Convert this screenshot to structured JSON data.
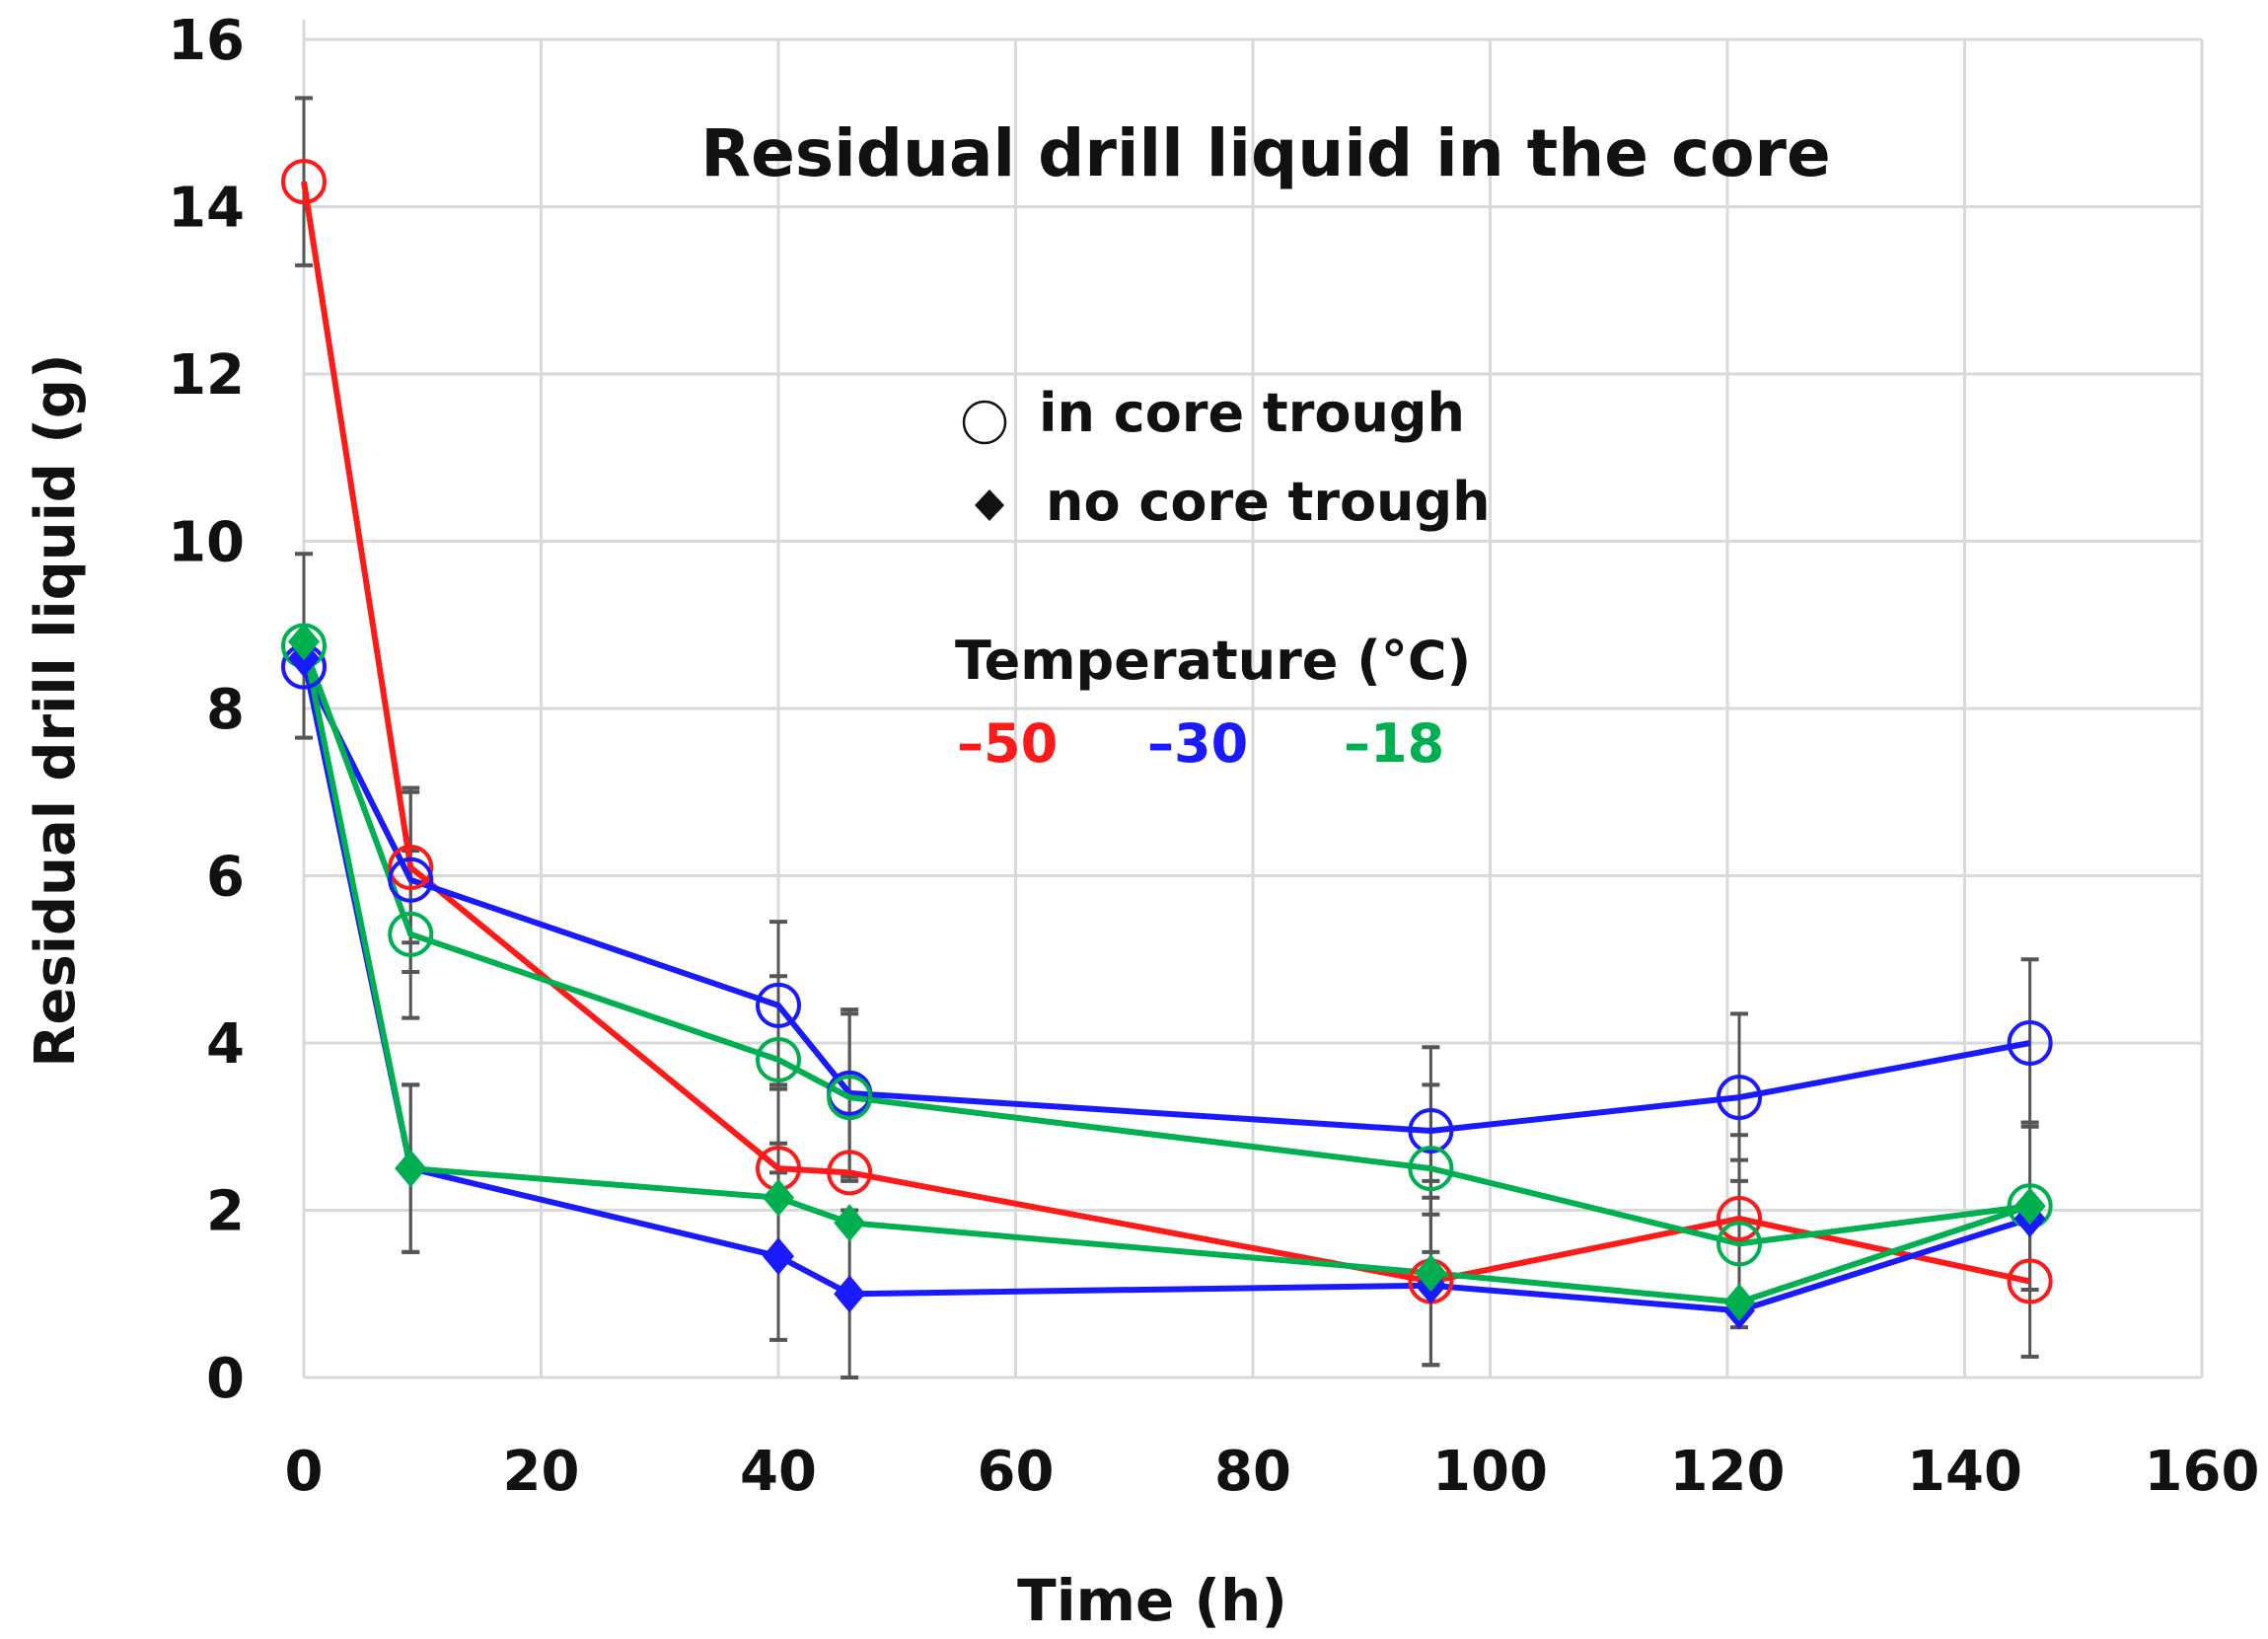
{
  "chart_data": {
    "type": "line",
    "title": "Residual drill liquid in the core",
    "xlabel": "Time (h)",
    "ylabel": "Residual drill liquid (g)",
    "xlim": [
      0,
      160
    ],
    "ylim": [
      0,
      16
    ],
    "xticks": [
      "0",
      "20",
      "40",
      "60",
      "80",
      "100",
      "120",
      "140",
      "160"
    ],
    "yticks": [
      "0",
      "2",
      "4",
      "6",
      "8",
      "10",
      "12",
      "14",
      "16"
    ],
    "grid": true,
    "legend": {
      "markers": [
        {
          "symbol": "circle",
          "label": "in core trough"
        },
        {
          "symbol": "diamond",
          "label": "no core trough"
        }
      ],
      "temperature_title": "Temperature (°C)",
      "temperatures": [
        {
          "label": "–50",
          "color": "#ff1a1a"
        },
        {
          "label": "–30",
          "color": "#1a1aff"
        },
        {
          "label": "–18",
          "color": "#00b050"
        }
      ]
    },
    "series": [
      {
        "name": "–50 in core trough",
        "color": "#ff1a1a",
        "marker": "circle",
        "x": [
          0,
          9,
          40,
          46,
          95,
          121,
          145.5
        ],
        "y": [
          14.3,
          6.1,
          2.5,
          2.45,
          1.15,
          1.9,
          1.15
        ],
        "err": [
          1.0,
          0.9,
          1.0,
          0.0,
          1.0,
          1.0,
          0.9
        ]
      },
      {
        "name": "–30 in core trough",
        "color": "#1a1aff",
        "marker": "circle",
        "x": [
          0,
          9,
          40,
          46,
          95,
          121,
          145.5
        ],
        "y": [
          8.5,
          5.95,
          4.45,
          3.4,
          2.95,
          3.35,
          4.0
        ],
        "err": [
          0.0,
          1.1,
          1.0,
          1.0,
          1.0,
          1.0,
          1.0
        ]
      },
      {
        "name": "–18 in core trough",
        "color": "#00b050",
        "marker": "circle",
        "x": [
          0,
          9,
          40,
          46,
          95,
          121,
          145.5
        ],
        "y": [
          8.75,
          5.3,
          3.8,
          3.35,
          2.5,
          1.6,
          2.05
        ],
        "err": [
          1.1,
          1.0,
          1.0,
          1.0,
          1.0,
          1.0,
          1.0
        ]
      },
      {
        "name": "–30 no core trough",
        "color": "#1a1aff",
        "marker": "diamond",
        "x": [
          0,
          9,
          40,
          46,
          95,
          121,
          145.5
        ],
        "y": [
          8.6,
          2.5,
          1.45,
          1.0,
          1.1,
          0.8,
          1.9
        ],
        "err": [
          0.0,
          1.0,
          1.0,
          1.0,
          0.0,
          0.0,
          0.0
        ]
      },
      {
        "name": "–18 no core trough",
        "color": "#00b050",
        "marker": "diamond",
        "x": [
          0,
          9,
          40,
          46,
          95,
          121,
          145.5
        ],
        "y": [
          8.8,
          2.5,
          2.15,
          1.85,
          1.25,
          0.9,
          2.05
        ],
        "err": [
          0.0,
          1.0,
          0.0,
          0.0,
          1.1,
          0.0,
          0.0
        ]
      }
    ]
  }
}
